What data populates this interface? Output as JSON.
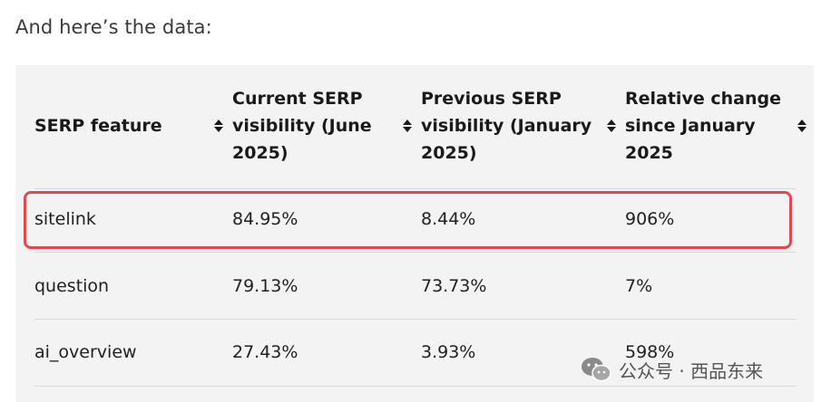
{
  "intro_text": "And here’s the data:",
  "table": {
    "headers": [
      {
        "label": "SERP feature"
      },
      {
        "line1": "Current SERP",
        "line2": "visibility (June",
        "line3": "2025)"
      },
      {
        "line1": "Previous SERP",
        "line2": "visibility (January",
        "line3": "2025)"
      },
      {
        "line1": "Relative change",
        "line2": "since January",
        "line3": "2025"
      }
    ],
    "rows": [
      {
        "feature": "sitelink",
        "current": "84.95%",
        "previous": "8.44%",
        "change": "906%",
        "highlighted": true
      },
      {
        "feature": "question",
        "current": "79.13%",
        "previous": "73.73%",
        "change": "7%"
      },
      {
        "feature": "ai_overview",
        "current": "27.43%",
        "previous": "3.93%",
        "change": "598%"
      }
    ]
  },
  "watermark": {
    "text": "公众号 · 西品东来",
    "icon": "wechat-icon"
  },
  "colors": {
    "table_bg": "#f3f3f3",
    "highlight_border": "#e5474b"
  }
}
